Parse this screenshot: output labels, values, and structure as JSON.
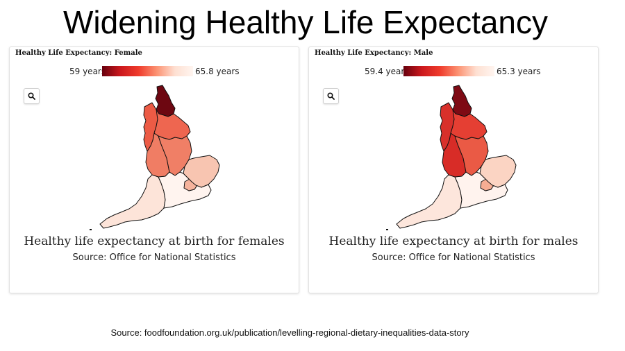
{
  "title": "Widening Healthy Life Expectancy",
  "panels": [
    {
      "title": "Healthy Life Expectancy: Female",
      "legend_min": "59 years",
      "legend_max": "65.8 years",
      "caption": "Healthy life expectancy at birth for females",
      "source": "Source: Office for National Statistics",
      "zoom_icon": "search-icon",
      "region_colors": {
        "north_east": "#6d0711",
        "north_west": "#ec5b45",
        "yorkshire": "#ee6650",
        "east_midlands": "#f07f66",
        "west_midlands": "#f07d64",
        "east": "#f8c5b1",
        "london": "#f6b39c",
        "south_west": "#fde4d9",
        "south_east": "#fff4ef"
      }
    },
    {
      "title": "Healthy Life Expectancy: Male",
      "legend_min": "59.4 years",
      "legend_max": "65.3 years",
      "caption": "Healthy life expectancy at birth for males",
      "source": "Source: Office for National Statistics",
      "zoom_icon": "search-icon",
      "region_colors": {
        "north_east": "#7e0a14",
        "north_west": "#d8302b",
        "yorkshire": "#e53f33",
        "east_midlands": "#ea5a45",
        "west_midlands": "#d82c27",
        "east": "#fbd4c3",
        "london": "#f6ad93",
        "south_west": "#fde6dc",
        "south_east": "#fff3ee"
      }
    }
  ],
  "legend_gradient": [
    "#67000d",
    "#cb181d",
    "#ef3b2c",
    "#fc9272",
    "#fee0d2",
    "#fff5f0"
  ],
  "footer_source": "Source: foodfoundation.org.uk/publication/levelling-regional-dietary-inequalities-data-story"
}
